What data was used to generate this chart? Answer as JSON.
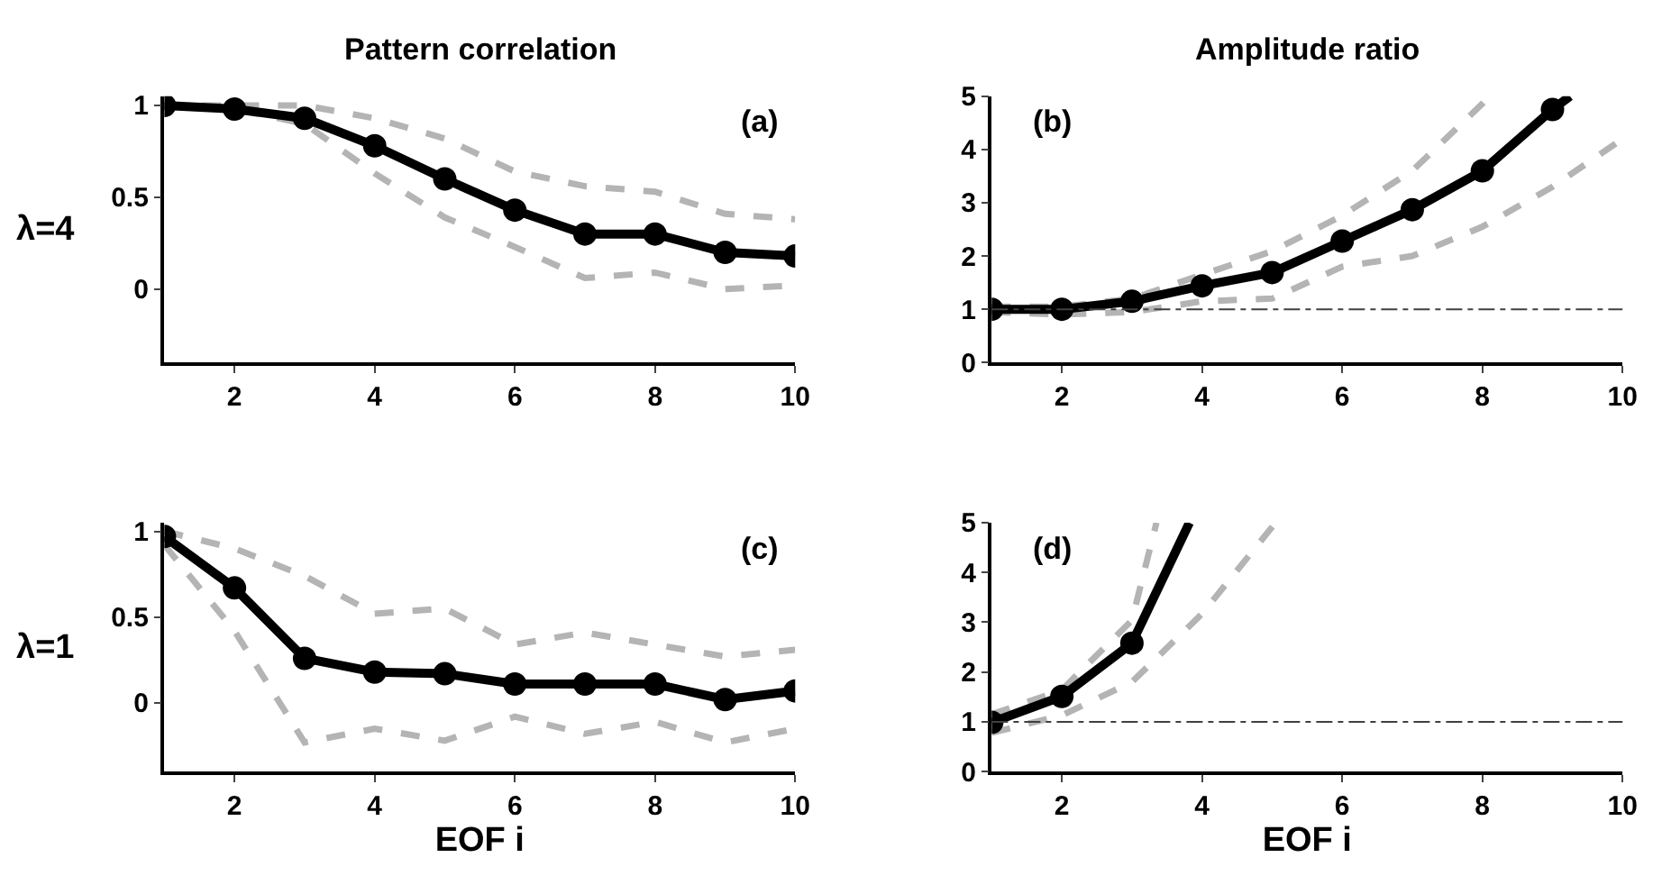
{
  "chart_data": [
    {
      "type": "line",
      "title": "Pattern correlation",
      "ylabel": "λ=4",
      "annotations": [
        "(a)"
      ],
      "x": [
        1,
        2,
        3,
        4,
        5,
        6,
        7,
        8,
        9,
        10
      ],
      "xlim": [
        1,
        10
      ],
      "xticks": [
        2,
        4,
        6,
        8,
        10
      ],
      "ylim": [
        -0.4,
        1.05
      ],
      "yticks": [
        0,
        0.5,
        1
      ],
      "marker": "circle",
      "line_style": "solid",
      "series": [
        {
          "color": "#b4b4b4",
          "line_style": "dashed",
          "marker": "none",
          "values": [
            1,
            1,
            1.0,
            0.93,
            0.82,
            0.64,
            0.56,
            0.53,
            0.41,
            0.38
          ]
        },
        {
          "color": "#b4b4b4",
          "line_style": "dashed",
          "marker": "none",
          "values": [
            1,
            0.98,
            0.9,
            0.63,
            0.39,
            0.23,
            0.06,
            0.09,
            0.0,
            0.02
          ]
        },
        {
          "color": "#000000",
          "values": [
            1,
            0.98,
            0.93,
            0.78,
            0.6,
            0.43,
            0.3,
            0.3,
            0.2,
            0.18
          ]
        }
      ]
    },
    {
      "type": "line",
      "title": "Amplitude ratio",
      "annotations": [
        "(b)"
      ],
      "x": [
        1,
        2,
        3,
        4,
        5,
        6,
        7,
        8,
        9,
        10
      ],
      "xlim": [
        1,
        10
      ],
      "xticks": [
        2,
        4,
        6,
        8,
        10
      ],
      "ylim": [
        0,
        5
      ],
      "yticks": [
        0,
        1,
        2,
        3,
        4,
        5
      ],
      "marker": "circle",
      "line_style": "solid",
      "ref_lines": [
        {
          "axis": "y",
          "value": 1,
          "color": "#404040",
          "line_style": "dashdot"
        }
      ],
      "series": [
        {
          "color": "#b4b4b4",
          "line_style": "dashed",
          "marker": "none",
          "x": [
            1,
            2,
            3,
            4,
            5,
            6,
            7,
            8,
            8.1
          ],
          "values": [
            1.05,
            1.05,
            1.2,
            1.65,
            2.09,
            2.76,
            3.6,
            4.86,
            5
          ]
        },
        {
          "color": "#b4b4b4",
          "line_style": "dashed",
          "marker": "none",
          "values": [
            0.95,
            0.9,
            0.95,
            1.15,
            1.2,
            1.8,
            2.0,
            2.55,
            3.3,
            4.2
          ]
        },
        {
          "color": "#000000",
          "x": [
            1,
            2,
            3,
            4,
            5,
            6,
            7,
            8,
            9
          ],
          "values": [
            1.0,
            1.0,
            1.15,
            1.44,
            1.69,
            2.28,
            2.87,
            3.6,
            4.75
          ]
        },
        {
          "color": "#000000",
          "marker": "none",
          "x": [
            9,
            9.25
          ],
          "values": [
            4.75,
            5
          ]
        }
      ]
    },
    {
      "type": "line",
      "xlabel": "EOF i",
      "ylabel": "λ=1",
      "annotations": [
        "(c)"
      ],
      "x": [
        1,
        2,
        3,
        4,
        5,
        6,
        7,
        8,
        9,
        10
      ],
      "xlim": [
        1,
        10
      ],
      "xticks": [
        2,
        4,
        6,
        8,
        10
      ],
      "ylim": [
        -0.4,
        1.05
      ],
      "yticks": [
        0,
        0.5,
        1
      ],
      "marker": "circle",
      "line_style": "solid",
      "series": [
        {
          "color": "#b4b4b4",
          "line_style": "dashed",
          "marker": "none",
          "values": [
            1.0,
            0.9,
            0.74,
            0.52,
            0.55,
            0.34,
            0.41,
            0.34,
            0.27,
            0.31
          ]
        },
        {
          "color": "#b4b4b4",
          "line_style": "dashed",
          "marker": "none",
          "values": [
            0.92,
            0.42,
            -0.23,
            -0.15,
            -0.22,
            -0.08,
            -0.18,
            -0.11,
            -0.23,
            -0.15
          ]
        },
        {
          "color": "#000000",
          "values": [
            0.97,
            0.67,
            0.26,
            0.18,
            0.17,
            0.11,
            0.11,
            0.11,
            0.02,
            0.07
          ]
        }
      ]
    },
    {
      "type": "line",
      "xlabel": "EOF i",
      "annotations": [
        "(d)"
      ],
      "xlim": [
        1,
        10
      ],
      "xticks": [
        2,
        4,
        6,
        8,
        10
      ],
      "ylim": [
        0,
        5
      ],
      "yticks": [
        0,
        1,
        2,
        3,
        4,
        5
      ],
      "marker": "circle",
      "line_style": "solid",
      "ref_lines": [
        {
          "axis": "y",
          "value": 1,
          "color": "#404040",
          "line_style": "dashdot"
        }
      ],
      "series": [
        {
          "color": "#b4b4b4",
          "line_style": "dashed",
          "marker": "none",
          "x": [
            1,
            2,
            3,
            3.35
          ],
          "values": [
            1.15,
            1.64,
            3.04,
            5
          ]
        },
        {
          "color": "#b4b4b4",
          "line_style": "dashed",
          "marker": "none",
          "x": [
            1,
            2,
            3,
            4,
            5.05
          ],
          "values": [
            0.78,
            1.13,
            1.8,
            3.17,
            5
          ]
        },
        {
          "color": "#000000",
          "x": [
            1,
            2,
            3
          ],
          "values": [
            0.99,
            1.51,
            2.58
          ]
        },
        {
          "color": "#000000",
          "marker": "none",
          "x": [
            3,
            3.82
          ],
          "values": [
            2.58,
            5
          ]
        }
      ]
    }
  ]
}
